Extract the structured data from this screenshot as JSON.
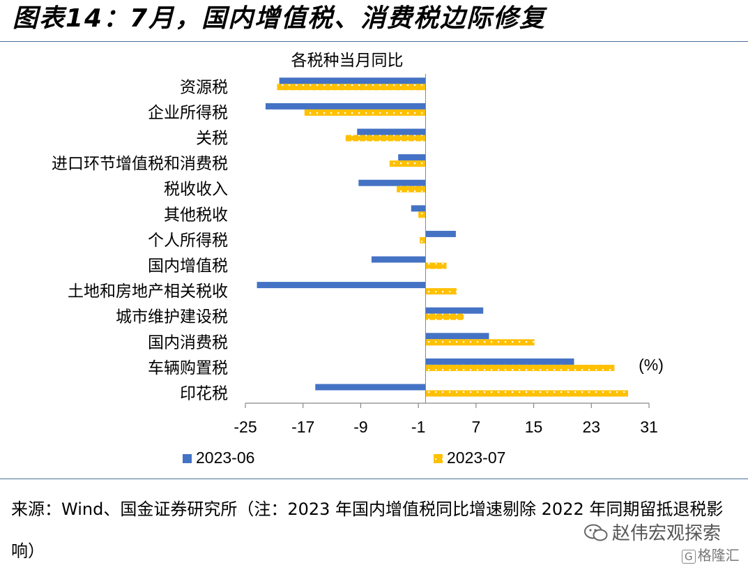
{
  "title": "图表14：7月，国内增值税、消费税边际修复",
  "source_note": "来源：Wind、国金证券研究所（注：2023 年国内增值税同比增速剔除 2022 年同期留抵退税影响）",
  "watermark": "赵伟宏观探索",
  "badge": "格隆汇",
  "chart_data": {
    "type": "bar",
    "orientation": "horizontal",
    "title": "各税种当月同比",
    "unit_label": "(%)",
    "categories": [
      "资源税",
      "企业所得税",
      "关税",
      "进口环节增值税和消费税",
      "税收收入",
      "其他税收",
      "个人所得税",
      "国内增值税",
      "土地和房地产相关税收",
      "城市维护建设税",
      "国内消费税",
      "车辆购置税",
      "印花税"
    ],
    "series": [
      {
        "name": "2023-06",
        "color": "#4472c4",
        "values": [
          -20.3,
          -22.2,
          -9.5,
          -3.8,
          -9.3,
          -2.0,
          4.2,
          -7.5,
          -23.4,
          8.0,
          8.8,
          20.6,
          -15.3
        ]
      },
      {
        "name": "2023-07",
        "color": "#ffc000",
        "values": [
          -20.6,
          -16.8,
          -11.1,
          -5.0,
          -4.0,
          -1.0,
          -0.8,
          2.9,
          4.3,
          5.3,
          15.1,
          26.2,
          28.1
        ]
      }
    ],
    "xlim": [
      -25,
      31
    ],
    "xticks": [
      -25,
      -17,
      -9,
      -1,
      7,
      15,
      23,
      31
    ],
    "grid": false,
    "legend_position": "bottom"
  }
}
